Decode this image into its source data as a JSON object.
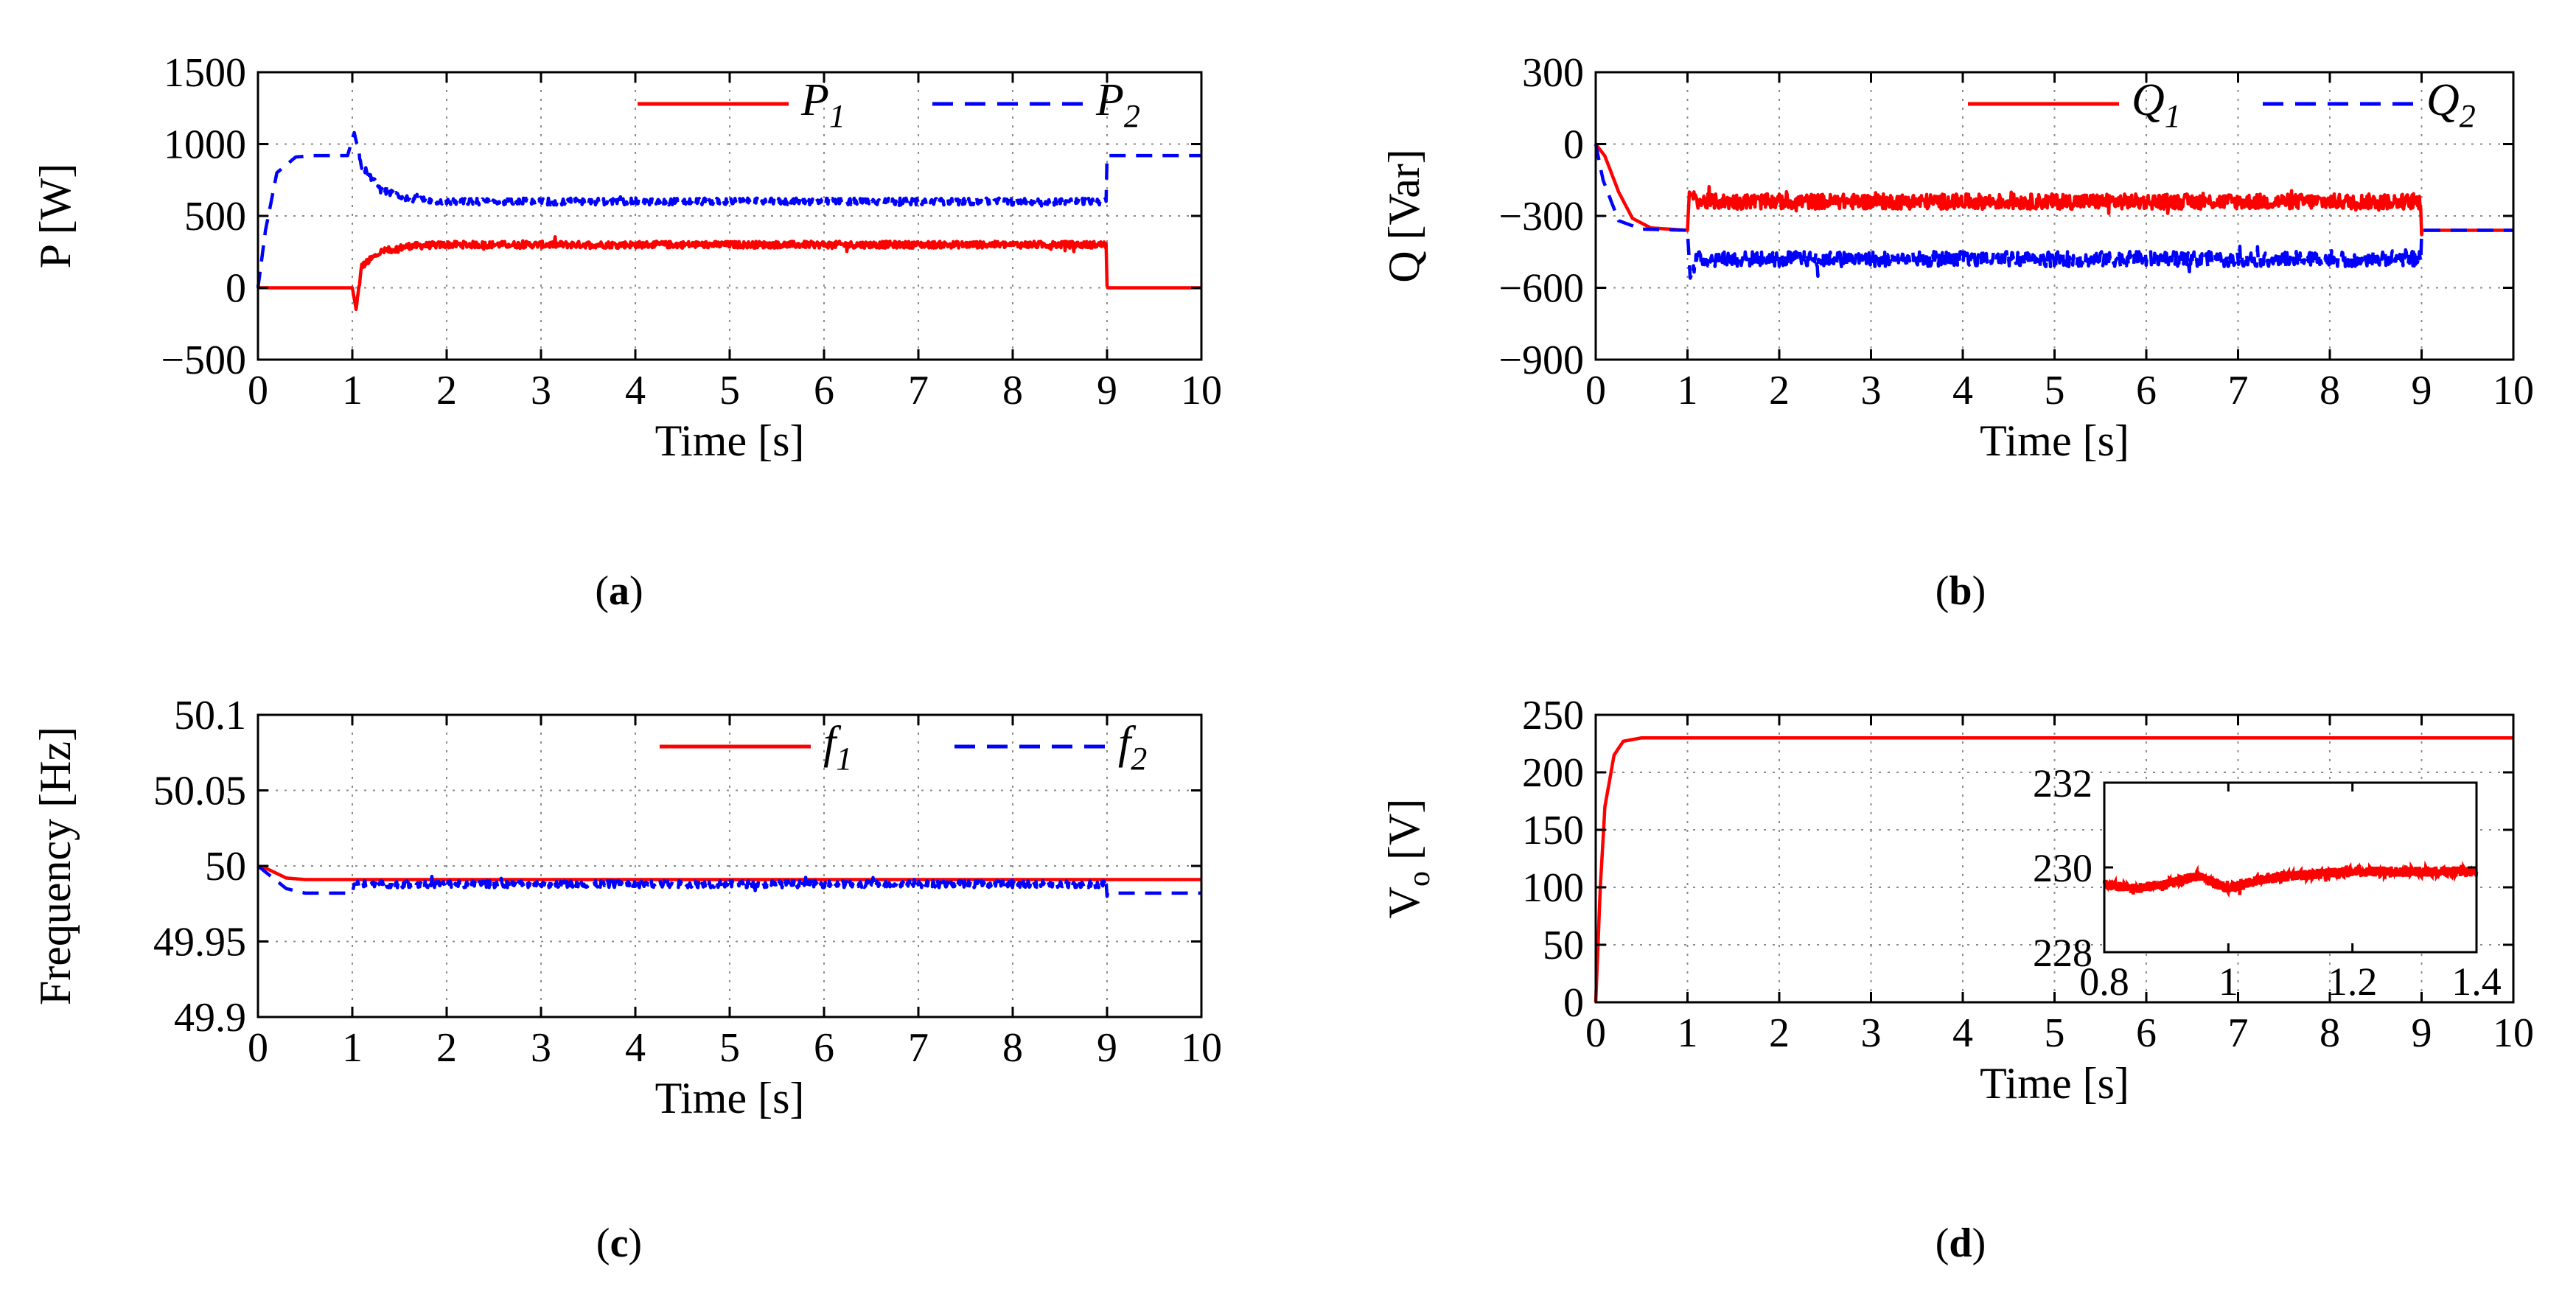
{
  "colors": {
    "series1": "#ff0000",
    "series2": "#0000ff",
    "grid": "#8c8c8c",
    "axis": "#000000"
  },
  "captions": [
    "a",
    "b",
    "c",
    "d"
  ],
  "chart_data": [
    {
      "id": "a",
      "type": "line",
      "title": "",
      "xlabel": "Time [s]",
      "ylabel": "P [W]",
      "xlim": [
        0,
        10
      ],
      "ylim": [
        -500,
        1500
      ],
      "xticks": [
        "0",
        "1",
        "2",
        "3",
        "4",
        "5",
        "6",
        "7",
        "8",
        "9",
        "10"
      ],
      "yticks": [
        "−500",
        "0",
        "500",
        "1000",
        "1500"
      ],
      "ytick_values": [
        -500,
        0,
        500,
        1000,
        1500
      ],
      "grid": true,
      "legend": "top-right",
      "series": [
        {
          "name": "P",
          "sub": "1",
          "style": "solid",
          "points": [
            [
              0,
              0
            ],
            [
              1.0,
              0
            ],
            [
              1.04,
              -150
            ],
            [
              1.1,
              150
            ],
            [
              1.3,
              250
            ],
            [
              1.6,
              290
            ],
            [
              2,
              300
            ],
            [
              5,
              300
            ],
            [
              8.99,
              300
            ],
            [
              9.0,
              0
            ],
            [
              10,
              0
            ]
          ],
          "noise": [
            [
              1.05,
              9.0,
              30
            ]
          ]
        },
        {
          "name": "P",
          "sub": "2",
          "style": "dashed",
          "points": [
            [
              0,
              0
            ],
            [
              0.08,
              400
            ],
            [
              0.2,
              800
            ],
            [
              0.4,
              910
            ],
            [
              0.6,
              920
            ],
            [
              0.95,
              920
            ],
            [
              1.02,
              1080
            ],
            [
              1.1,
              850
            ],
            [
              1.3,
              680
            ],
            [
              1.6,
              620
            ],
            [
              2,
              600
            ],
            [
              8.99,
              600
            ],
            [
              9.0,
              920
            ],
            [
              10,
              920
            ]
          ],
          "noise": [
            [
              1.05,
              9.0,
              30
            ]
          ]
        }
      ]
    },
    {
      "id": "b",
      "type": "line",
      "title": "",
      "xlabel": "Time [s]",
      "ylabel": "Q [Var]",
      "xlim": [
        0,
        10
      ],
      "ylim": [
        -900,
        300
      ],
      "xticks": [
        "0",
        "1",
        "2",
        "3",
        "4",
        "5",
        "6",
        "7",
        "8",
        "9",
        "10"
      ],
      "yticks": [
        "−900",
        "−600",
        "−300",
        "0",
        "300"
      ],
      "ytick_values": [
        -900,
        -600,
        -300,
        0,
        300
      ],
      "grid": true,
      "legend": "top-right",
      "series": [
        {
          "name": "Q",
          "sub": "1",
          "style": "solid",
          "points": [
            [
              0,
              0
            ],
            [
              0.1,
              -50
            ],
            [
              0.25,
              -200
            ],
            [
              0.4,
              -310
            ],
            [
              0.6,
              -350
            ],
            [
              1.0,
              -360
            ],
            [
              1.02,
              -200
            ],
            [
              1.1,
              -240
            ],
            [
              2,
              -240
            ],
            [
              8.99,
              -240
            ],
            [
              9.0,
              -360
            ],
            [
              10,
              -360
            ]
          ],
          "noise": [
            [
              1.05,
              9.0,
              40
            ]
          ]
        },
        {
          "name": "Q",
          "sub": "2",
          "style": "dashed",
          "points": [
            [
              0,
              0
            ],
            [
              0.08,
              -150
            ],
            [
              0.25,
              -320
            ],
            [
              0.5,
              -355
            ],
            [
              1.0,
              -360
            ],
            [
              1.03,
              -560
            ],
            [
              1.1,
              -480
            ],
            [
              2,
              -480
            ],
            [
              8.99,
              -480
            ],
            [
              9.0,
              -360
            ],
            [
              10,
              -360
            ]
          ],
          "noise": [
            [
              1.05,
              9.0,
              40
            ]
          ]
        }
      ]
    },
    {
      "id": "c",
      "type": "line",
      "title": "",
      "xlabel": "Time [s]",
      "ylabel": "Frequency [Hz]",
      "xlim": [
        0,
        10
      ],
      "ylim": [
        49.9,
        50.1
      ],
      "xticks": [
        "0",
        "1",
        "2",
        "3",
        "4",
        "5",
        "6",
        "7",
        "8",
        "9",
        "10"
      ],
      "yticks": [
        "49.9",
        "49.95",
        "50",
        "50.05",
        "50.1"
      ],
      "ytick_values": [
        49.9,
        49.95,
        50.0,
        50.05,
        50.1
      ],
      "grid": true,
      "legend": "top-right",
      "series": [
        {
          "name": "f",
          "sub": "1",
          "style": "solid",
          "points": [
            [
              0,
              50.0
            ],
            [
              0.1,
              49.998
            ],
            [
              0.3,
              49.992
            ],
            [
              0.5,
              49.991
            ],
            [
              8.99,
              49.991
            ],
            [
              9.0,
              49.991
            ],
            [
              10,
              49.991
            ]
          ],
          "noise": []
        },
        {
          "name": "f",
          "sub": "2",
          "style": "dashed",
          "points": [
            [
              0,
              50.0
            ],
            [
              0.1,
              49.995
            ],
            [
              0.3,
              49.985
            ],
            [
              0.5,
              49.982
            ],
            [
              1.0,
              49.982
            ],
            [
              1.02,
              49.988
            ],
            [
              2,
              49.988
            ],
            [
              8.99,
              49.988
            ],
            [
              9.0,
              49.982
            ],
            [
              10,
              49.982
            ]
          ],
          "noise": [
            [
              1.05,
              9.0,
              0.003
            ]
          ]
        }
      ]
    },
    {
      "id": "d",
      "type": "line",
      "title": "",
      "xlabel": "Time [s]",
      "ylabel": "V",
      "ylabel_sub": "o",
      "ylabel_rest": " [V]",
      "xlim": [
        0,
        10
      ],
      "ylim": [
        0,
        250
      ],
      "xticks": [
        "0",
        "1",
        "2",
        "3",
        "4",
        "5",
        "6",
        "7",
        "8",
        "9",
        "10"
      ],
      "yticks": [
        "0",
        "50",
        "100",
        "150",
        "200",
        "250"
      ],
      "ytick_values": [
        0,
        50,
        100,
        150,
        200,
        250
      ],
      "grid": true,
      "legend": "none",
      "series": [
        {
          "name": "V",
          "sub": "o",
          "style": "solid",
          "points": [
            [
              0,
              0
            ],
            [
              0.05,
              100
            ],
            [
              0.1,
              170
            ],
            [
              0.2,
              215
            ],
            [
              0.3,
              227
            ],
            [
              0.5,
              230
            ],
            [
              10,
              230
            ]
          ],
          "noise": []
        }
      ],
      "inset": {
        "xlim": [
          0.8,
          1.4
        ],
        "ylim": [
          228,
          232
        ],
        "xticks": [
          "0.8",
          "1",
          "1.2",
          "1.4"
        ],
        "xtick_values": [
          0.8,
          1.0,
          1.2,
          1.4
        ],
        "yticks": [
          "228",
          "230",
          "232"
        ],
        "ytick_values": [
          228,
          230,
          232
        ],
        "points": [
          [
            0.8,
            229.6
          ],
          [
            0.85,
            229.5
          ],
          [
            0.9,
            229.6
          ],
          [
            0.95,
            229.8
          ],
          [
            1.0,
            229.5
          ],
          [
            1.05,
            229.7
          ],
          [
            1.1,
            229.8
          ],
          [
            1.2,
            229.9
          ],
          [
            1.3,
            229.9
          ],
          [
            1.4,
            229.9
          ]
        ],
        "noise": [
          [
            0.8,
            1.4,
            0.15
          ]
        ]
      }
    }
  ]
}
